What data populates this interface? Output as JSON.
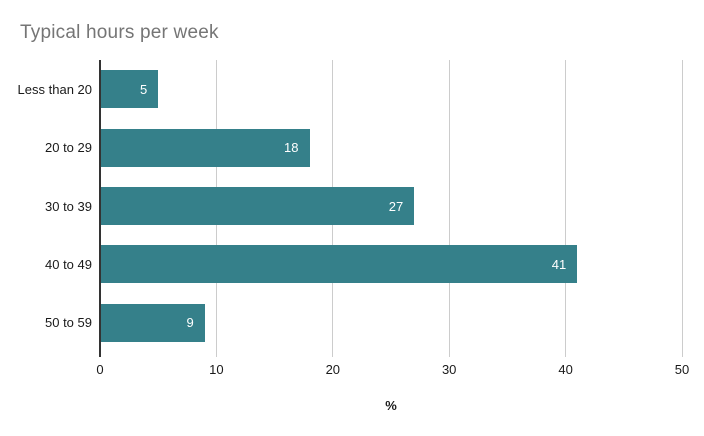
{
  "window": {
    "background": "#ffffff"
  },
  "chart_data": {
    "type": "bar",
    "orientation": "horizontal",
    "title": "Typical hours per week",
    "categories": [
      "Less than 20",
      "20 to 29",
      "30 to 39",
      "40 to 49",
      "50 to 59"
    ],
    "values": [
      5,
      18,
      27,
      41,
      9
    ],
    "value_labels": [
      "5",
      "18",
      "27",
      "41",
      "9"
    ],
    "xlabel": "%",
    "ylabel": "",
    "xlim": [
      0,
      50
    ],
    "xticks": [
      0,
      10,
      20,
      30,
      40,
      50
    ],
    "grid": true,
    "legend_position": "none",
    "colors": {
      "bar": "#35808a",
      "title": "#757575",
      "axis_line": "#333333",
      "grid_line": "#cccccc",
      "tick_label": "#1a1a1a",
      "category_label": "#1a1a1a",
      "value_label": "#ffffff",
      "background": "#ffffff"
    }
  }
}
